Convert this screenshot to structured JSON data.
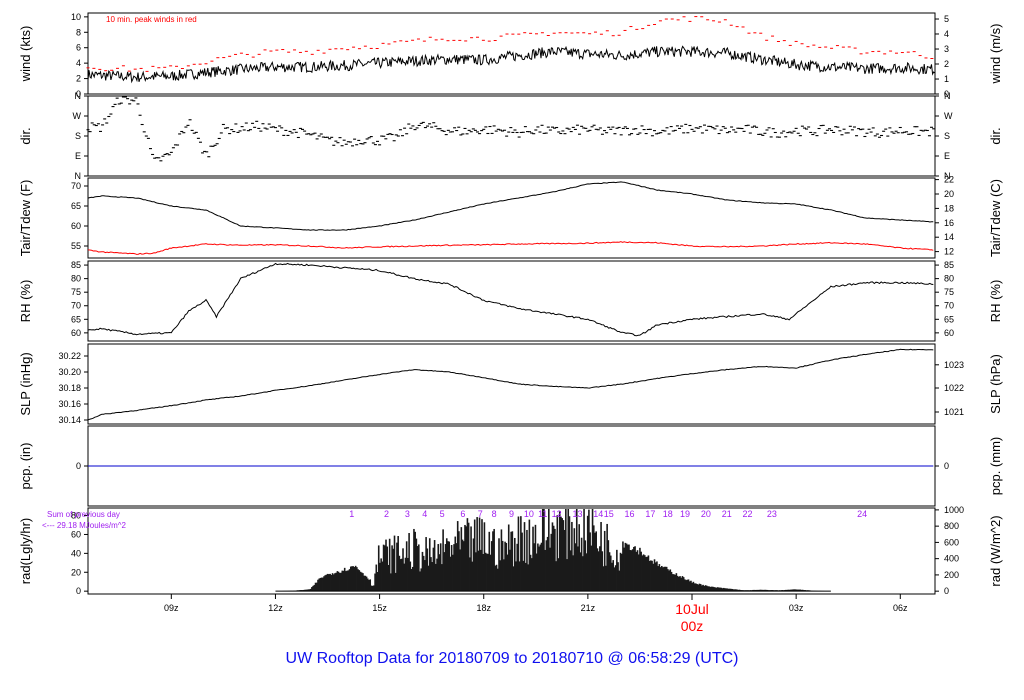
{
  "title": "UW Rooftop Data for 20180709  to  20180710 @ 06:58:29  (UTC)",
  "colors": {
    "black": "#000000",
    "red": "#ff0000",
    "blue": "#0000cc",
    "purple": "#a020f0",
    "title": "#1010ee"
  },
  "x_axis": {
    "tick_labels": [
      "09z",
      "12z",
      "15z",
      "18z",
      "21z",
      "03z",
      "06z"
    ],
    "tick_hours": [
      9,
      12,
      15,
      18,
      21,
      27,
      30
    ],
    "day_marker": {
      "hour": 24,
      "date_label": "10Jul",
      "time_label": "00z"
    },
    "xlim_hours": [
      6.6,
      31.0
    ]
  },
  "chart_data": [
    {
      "id": "wind",
      "type": "line",
      "ylabel_left": "wind (kts)",
      "ylabel_right": "wind (m/s)",
      "ylim": [
        0,
        10.5
      ],
      "left_ticks": [
        0,
        2,
        4,
        6,
        8,
        10
      ],
      "right_ticks": [
        {
          "label": "0",
          "value": 0
        },
        {
          "label": "1",
          "value": 1.94
        },
        {
          "label": "2",
          "value": 3.89
        },
        {
          "label": "3",
          "value": 5.83
        },
        {
          "label": "4",
          "value": 7.78
        },
        {
          "label": "5",
          "value": 9.72
        }
      ],
      "annotation": "10 min. peak winds in red",
      "series": [
        {
          "role": "mean",
          "color": "#000000",
          "x": [
            6.6,
            8,
            9,
            10,
            11,
            12,
            13,
            14,
            15,
            16,
            17,
            18,
            19,
            20,
            21,
            22,
            23,
            24,
            25,
            26,
            27,
            28,
            29,
            30,
            31
          ],
          "y": [
            2.5,
            2.2,
            2.3,
            2.8,
            3.2,
            3.5,
            3.5,
            3.7,
            4.0,
            4.3,
            4.5,
            4.4,
            5.0,
            5.5,
            5.2,
            5.0,
            5.5,
            5.5,
            5.3,
            4.5,
            3.8,
            3.5,
            3.3,
            3.4,
            3.2
          ]
        },
        {
          "role": "peak",
          "color": "#ff0000",
          "x": [
            6.6,
            8,
            9,
            10,
            11,
            12,
            13,
            14,
            15,
            16,
            17,
            18,
            19,
            20,
            21,
            22,
            23,
            24,
            25,
            26,
            27,
            28,
            29,
            30,
            31
          ],
          "y": [
            3.5,
            3.2,
            3.3,
            4.2,
            5.0,
            5.5,
            5.5,
            6.0,
            6.3,
            6.8,
            7.3,
            7.2,
            7.5,
            8.0,
            7.8,
            8.0,
            9.5,
            9.8,
            9.5,
            7.5,
            6.5,
            6.0,
            5.5,
            5.5,
            4.8
          ]
        }
      ]
    },
    {
      "id": "dir",
      "type": "scatter",
      "ylabel_left": "dir.",
      "ylabel_right": "dir.",
      "ylim": [
        0,
        360
      ],
      "left_ticks": [
        {
          "label": "N",
          "value": 0
        },
        {
          "label": "E",
          "value": 90
        },
        {
          "label": "S",
          "value": 180
        },
        {
          "label": "W",
          "value": 270
        },
        {
          "label": "N",
          "value": 360
        }
      ],
      "right_ticks": [
        {
          "label": "N",
          "value": 0
        },
        {
          "label": "E",
          "value": 90
        },
        {
          "label": "S",
          "value": 180
        },
        {
          "label": "W",
          "value": 270
        },
        {
          "label": "N",
          "value": 360
        }
      ],
      "series": [
        {
          "color": "#000000",
          "x": [
            7,
            7.5,
            8,
            8.5,
            9,
            9.5,
            10,
            10.5,
            11,
            11.5,
            12,
            12.5,
            13,
            13.5,
            14,
            14.5,
            15,
            15.5,
            16,
            16.5,
            17,
            17.5,
            18,
            18.5,
            19,
            19.5,
            20,
            20.5,
            21,
            21.5,
            22,
            22.5,
            23,
            23.5,
            24,
            24.5,
            25,
            25.5,
            26,
            26.5,
            27,
            27.5,
            28,
            28.5,
            29,
            29.5,
            30,
            30.5
          ],
          "y": [
            220,
            345,
            340,
            60,
            100,
            250,
            90,
            210,
            215,
            225,
            210,
            200,
            185,
            160,
            150,
            165,
            160,
            175,
            230,
            220,
            205,
            200,
            210,
            205,
            195,
            210,
            200,
            205,
            210,
            200,
            205,
            210,
            200,
            205,
            215,
            210,
            205,
            210,
            200,
            195,
            205,
            200,
            210,
            205,
            200,
            195,
            205,
            200
          ]
        }
      ]
    },
    {
      "id": "temp",
      "type": "line",
      "ylabel_left": "Tair/Tdew (F)",
      "ylabel_right": "Tair/Tdew (C)",
      "ylim": [
        52,
        72
      ],
      "left_ticks": [
        55,
        60,
        65,
        70
      ],
      "right_ticks": [
        {
          "label": "12",
          "value": 53.6
        },
        {
          "label": "14",
          "value": 57.2
        },
        {
          "label": "16",
          "value": 60.8
        },
        {
          "label": "18",
          "value": 64.4
        },
        {
          "label": "20",
          "value": 68
        },
        {
          "label": "22",
          "value": 71.6
        }
      ],
      "series": [
        {
          "role": "Tair",
          "color": "#000000",
          "x": [
            6.6,
            7,
            8,
            9,
            10,
            11,
            12,
            13,
            14,
            15,
            16,
            17,
            18,
            19,
            20,
            21,
            22,
            23,
            24,
            25,
            26,
            27,
            28,
            29,
            30,
            31
          ],
          "y": [
            67,
            67.5,
            67,
            65,
            64,
            60,
            59.5,
            59,
            59,
            60,
            61.5,
            63.5,
            65.5,
            67,
            68.5,
            70.5,
            71,
            69,
            68,
            66.5,
            65.8,
            65.5,
            64,
            62,
            61.5,
            61
          ]
        },
        {
          "role": "Tdew",
          "color": "#ff0000",
          "x": [
            6.6,
            7,
            8,
            8.5,
            9,
            10,
            11,
            12,
            13,
            14,
            15,
            16,
            17,
            18,
            19,
            20,
            21,
            22,
            23,
            24,
            25,
            26,
            27,
            28,
            29,
            30,
            31
          ],
          "y": [
            54,
            53.5,
            53,
            53.2,
            54.5,
            55.5,
            55.2,
            55.3,
            55,
            54.5,
            54.8,
            55,
            55.2,
            55.3,
            55.5,
            55.6,
            55.7,
            56,
            55.8,
            55,
            54.8,
            55,
            55.5,
            55.8,
            55.5,
            54.5,
            54
          ]
        }
      ]
    },
    {
      "id": "rh",
      "type": "line",
      "ylabel_left": "RH (%)",
      "ylabel_right": "RH (%)",
      "ylim": [
        57,
        86.5
      ],
      "left_ticks": [
        60,
        65,
        70,
        75,
        80,
        85
      ],
      "right_ticks": [
        {
          "label": "60",
          "value": 60
        },
        {
          "label": "65",
          "value": 65
        },
        {
          "label": "70",
          "value": 70
        },
        {
          "label": "75",
          "value": 75
        },
        {
          "label": "80",
          "value": 80
        },
        {
          "label": "85",
          "value": 85
        }
      ],
      "series": [
        {
          "color": "#000000",
          "x": [
            6.6,
            7,
            8,
            9,
            9.5,
            10,
            10.3,
            11,
            12,
            13,
            14,
            15,
            16,
            17,
            18,
            19,
            20,
            21,
            22,
            22.5,
            23,
            24,
            25,
            26,
            26.8,
            27.5,
            28,
            29,
            30,
            31
          ],
          "y": [
            61,
            61.5,
            59.5,
            60,
            68,
            72,
            66,
            80,
            85.5,
            85,
            84,
            83,
            80,
            78,
            72,
            69,
            67,
            65,
            60,
            59,
            63,
            65,
            66,
            67,
            65,
            72,
            77,
            78.5,
            78.5,
            78
          ]
        }
      ]
    },
    {
      "id": "slp",
      "type": "line",
      "ylabel_left": "SLP (inHg)",
      "ylabel_right": "SLP (hPa)",
      "ylim": [
        30.135,
        30.235
      ],
      "left_ticks": [
        30.14,
        30.16,
        30.18,
        30.2,
        30.22
      ],
      "right_ticks": [
        {
          "label": "1021",
          "value": 30.15
        },
        {
          "label": "1022",
          "value": 30.18
        },
        {
          "label": "1023",
          "value": 30.209
        }
      ],
      "series": [
        {
          "color": "#000000",
          "x": [
            6.6,
            7,
            8,
            9,
            10,
            11,
            12,
            13,
            14,
            15,
            16,
            17,
            18,
            19,
            20,
            21,
            22,
            23,
            24,
            25,
            26,
            27,
            28,
            29,
            30,
            31
          ],
          "y": [
            30.14,
            30.147,
            30.152,
            30.158,
            30.165,
            30.17,
            30.177,
            30.183,
            30.19,
            30.197,
            30.203,
            30.2,
            30.193,
            30.185,
            30.182,
            30.18,
            30.185,
            30.192,
            30.198,
            30.203,
            30.207,
            30.205,
            30.215,
            30.222,
            30.228,
            30.228
          ]
        }
      ]
    },
    {
      "id": "pcp",
      "type": "line",
      "ylabel_left": "pcp. (in)",
      "ylabel_right": "pcp. (mm)",
      "ylim": [
        -1,
        1
      ],
      "left_ticks": [
        0
      ],
      "right_ticks": [
        {
          "label": "0",
          "value": 0
        }
      ],
      "series": [
        {
          "color": "#0000cc",
          "x": [
            6.6,
            31
          ],
          "y": [
            0,
            0
          ]
        }
      ]
    },
    {
      "id": "rad",
      "type": "area",
      "ylabel_left": "rad(Lgly/hr)",
      "ylabel_right": "rad (W/m^2)",
      "ylim": [
        -3,
        88
      ],
      "left_ticks": [
        0,
        20,
        40,
        60,
        80
      ],
      "right_ticks": [
        {
          "label": "0",
          "value": 0
        },
        {
          "label": "200",
          "value": 17.2
        },
        {
          "label": "400",
          "value": 34.4
        },
        {
          "label": "600",
          "value": 51.6
        },
        {
          "label": "800",
          "value": 68.8
        },
        {
          "label": "1000",
          "value": 86.0
        }
      ],
      "annotations": [
        "Sum of previous day",
        "<--- 29.18 MJoules/m^2"
      ],
      "hour_markers": [
        "1",
        "2",
        "3",
        "4",
        "5",
        "6",
        "7",
        "8",
        "9",
        "10",
        "11",
        "12",
        "13",
        "14",
        "15",
        "16",
        "17",
        "18",
        "19",
        "20",
        "21",
        "22",
        "23",
        "24"
      ],
      "hour_marker_x": [
        14.2,
        15.2,
        15.8,
        16.3,
        16.8,
        17.4,
        17.9,
        18.3,
        18.8,
        19.3,
        19.7,
        20.1,
        20.7,
        21.3,
        21.6,
        22.2,
        22.8,
        23.3,
        23.8,
        24.4,
        25.0,
        25.6,
        26.3,
        28.9
      ],
      "series": [
        {
          "color": "#1a1a1a",
          "x": [
            12,
            12.5,
            13,
            13.3,
            13.6,
            14,
            14.3,
            14.8,
            15,
            15.5,
            16,
            16.5,
            17,
            17.5,
            18,
            18.5,
            19,
            19.5,
            20,
            20.5,
            21,
            21.5,
            22,
            22.5,
            23,
            23.5,
            24,
            24.5,
            25,
            25.5,
            26,
            26.5,
            27,
            27.5,
            28
          ],
          "y": [
            0,
            0.5,
            2,
            15,
            20,
            24,
            28,
            10,
            50,
            55,
            60,
            50,
            65,
            70,
            75,
            60,
            78,
            80,
            90,
            92,
            95,
            70,
            55,
            45,
            30,
            20,
            10,
            5,
            3,
            1,
            1.5,
            1,
            2,
            0.5,
            0
          ]
        }
      ]
    }
  ]
}
